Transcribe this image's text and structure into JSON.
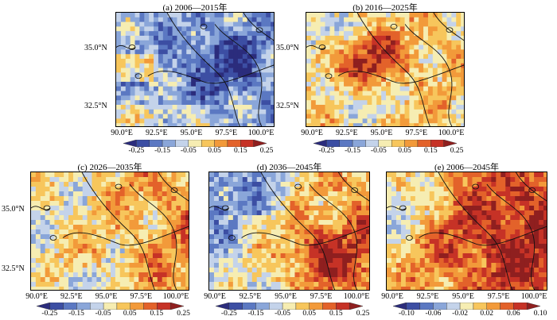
{
  "palette_warm_cool": [
    "#2b2c7c",
    "#3c4ea3",
    "#5b78c2",
    "#8aa6d9",
    "#c4d3ea",
    "#f6edb2",
    "#f7c65c",
    "#f29a3a",
    "#e3622a",
    "#c63226",
    "#8f1f1f"
  ],
  "chart_data": [
    {
      "type": "heatmap",
      "title": "(a) 2006—2015年",
      "x_ticks": [
        "90.0°E",
        "92.5°E",
        "95.0°E",
        "97.5°E",
        "100.0°E"
      ],
      "y_ticks": [
        "35.0°N",
        "32.5°N"
      ],
      "colorbar_ticks": [
        "-0.25",
        "-0.15",
        "-0.05",
        "0.05",
        "0.15",
        "0.25"
      ],
      "colorbar_range": [
        -0.25,
        0.25
      ],
      "pattern": "cool"
    },
    {
      "type": "heatmap",
      "title": "(b) 2016—2025年",
      "x_ticks": [
        "90.0°E",
        "92.5°E",
        "95.0°E",
        "97.5°E",
        "100.0°E"
      ],
      "y_ticks": [
        "35.0°N",
        "32.5°N"
      ],
      "colorbar_ticks": [
        "-0.25",
        "-0.15",
        "-0.05",
        "0.05",
        "0.15",
        "0.25"
      ],
      "colorbar_range": [
        -0.25,
        0.25
      ],
      "pattern": "warm_center"
    },
    {
      "type": "heatmap",
      "title": "(c) 2026—2035年",
      "x_ticks": [
        "90.0°E",
        "92.5°E",
        "95.0°E",
        "97.5°E",
        "100.0°E"
      ],
      "y_ticks": [
        "35.0°N",
        "32.5°N"
      ],
      "colorbar_ticks": [
        "-0.25",
        "-0.15",
        "-0.05",
        "0.05",
        "0.15",
        "0.25"
      ],
      "colorbar_range": [
        -0.25,
        0.25
      ],
      "pattern": "mixed_east"
    },
    {
      "type": "heatmap",
      "title": "(d) 2036—2045年",
      "x_ticks": [
        "90.0°E",
        "92.5°E",
        "95.0°E",
        "97.5°E",
        "100.0°E"
      ],
      "y_ticks": [],
      "colorbar_ticks": [
        "-0.25",
        "-0.15",
        "-0.05",
        "0.05",
        "0.15",
        "0.25"
      ],
      "colorbar_range": [
        -0.25,
        0.25
      ],
      "pattern": "warm_southeast"
    },
    {
      "type": "heatmap",
      "title": "(e) 2006—2045年",
      "x_ticks": [
        "90.0°E",
        "92.5°E",
        "95.0°E",
        "97.5°E",
        "100.0°E"
      ],
      "y_ticks": [],
      "colorbar_ticks": [
        "-0.10",
        "-0.06",
        "-0.02",
        "0.02",
        "0.06",
        "0.10"
      ],
      "colorbar_range": [
        -0.1,
        0.1
      ],
      "pattern": "warm_broad"
    }
  ]
}
